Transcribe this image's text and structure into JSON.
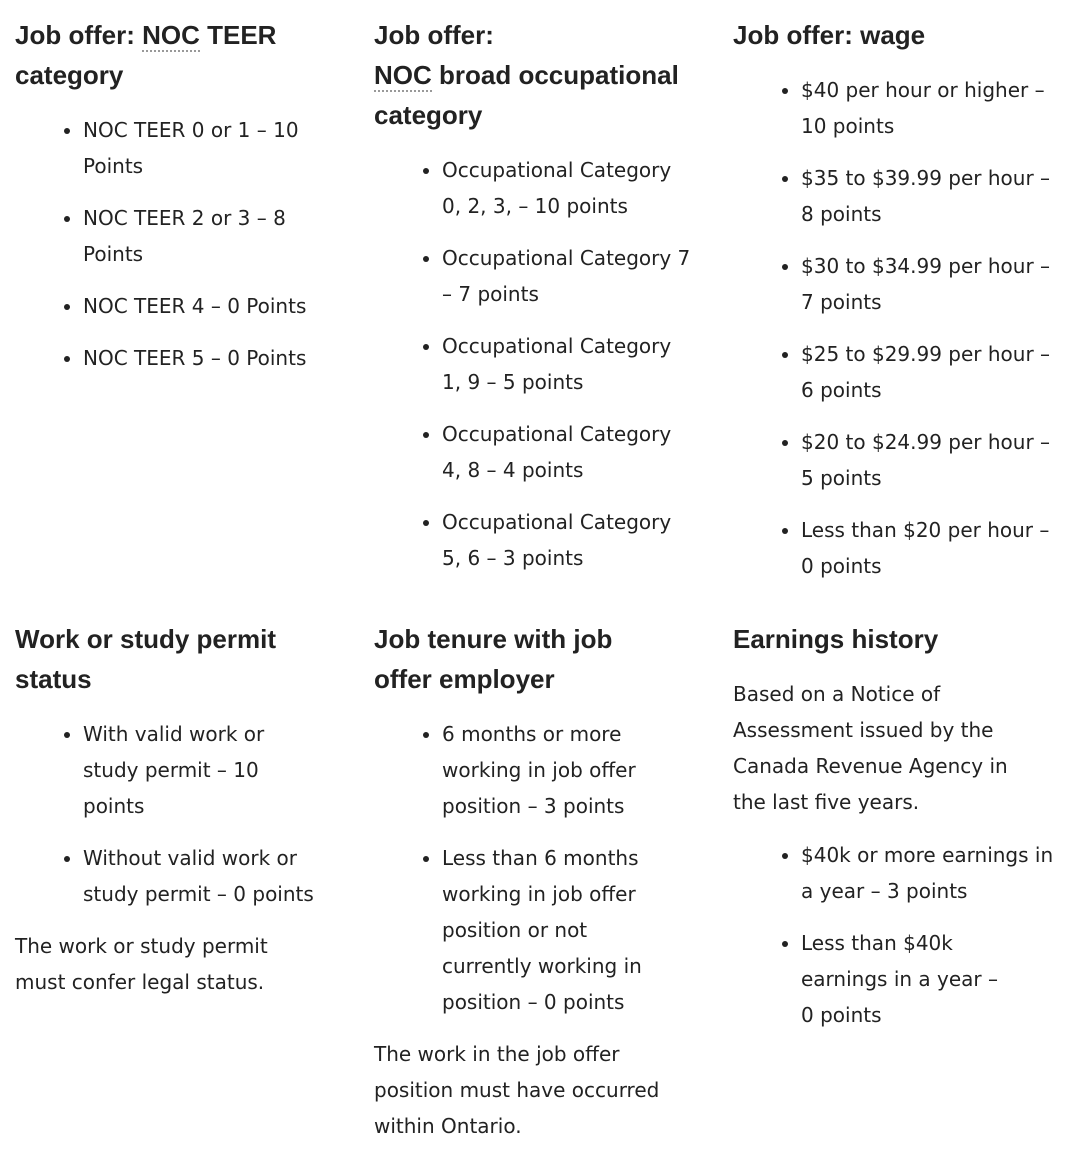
{
  "sections": [
    {
      "title_pre": "Job offer: ",
      "title_abbr": "NOC",
      "title_post": " TEER category",
      "items": [
        "NOC TEER 0 or 1 – 10 Points",
        "NOC TEER 2 or 3 – 8 Points",
        "NOC TEER 4 – 0 Points",
        "NOC TEER 5 – 0 Points"
      ]
    },
    {
      "title_pre": "Job offer:",
      "title_abbr": "NOC",
      "title_post": " broad occupational category",
      "items": [
        "Occupational Category 0, 2, 3, – 10 points",
        "Occupational Category 7 – 7 points",
        "Occupational Category 1, 9 – 5 points",
        "Occupational Category 4, 8 – 4 points",
        "Occupational Category 5, 6 – 3 points"
      ]
    },
    {
      "title": "Job offer: wage",
      "items": [
        "$40 per hour or higher – 10 points",
        "$35 to $39.99 per hour – 8 points",
        "$30 to $34.99 per hour – 7 points",
        "$25 to $29.99 per hour – 6 points",
        "$20 to $24.99 per hour – 5 points",
        "Less than $20 per hour – 0 points"
      ]
    },
    {
      "title": "Work or study permit status",
      "items": [
        "With valid work or study permit – 10 points",
        "Without valid work or study permit – 0 points"
      ],
      "note": "The work or study permit must confer legal status."
    },
    {
      "title": "Job tenure with job offer employer",
      "items": [
        "6 months or more working in job offer position – 3 points",
        "Less than 6 months working in job offer position or not currently working in position – 0 points"
      ],
      "note": "The work in the job offer position must have occurred within Ontario."
    },
    {
      "title": "Earnings history",
      "intro": "Based on a Notice of Assessment issued by the Canada Revenue Agency in the last five years.",
      "items": [
        "$40k or more earnings in a year – 3 points",
        "Less than $40k earnings in a year – 0 points"
      ]
    }
  ]
}
